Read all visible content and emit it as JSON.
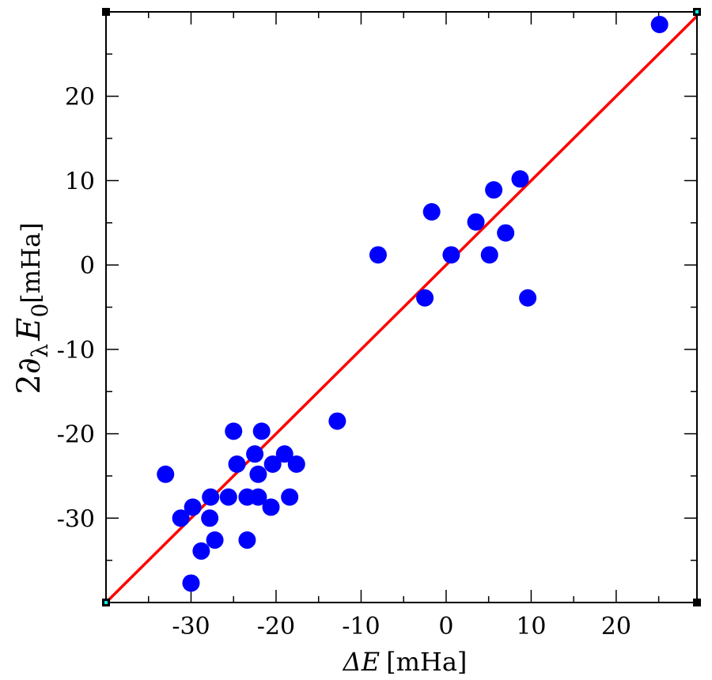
{
  "chart_data": {
    "type": "scatter",
    "title": "",
    "xlabel": {
      "prefix": "ΔE",
      "unit": "[mHa]"
    },
    "ylabel": {
      "prefix": "2∂",
      "sub": "λ",
      "var": "E",
      "sub2": "0",
      "unit": "[mHa]"
    },
    "xlim": [
      -40,
      29.5
    ],
    "ylim": [
      -40,
      30
    ],
    "xticks": [
      -30,
      -20,
      -10,
      0,
      10,
      20
    ],
    "yticks": [
      -30,
      -20,
      -10,
      0,
      10,
      20
    ],
    "minor_step": 5,
    "grid": false,
    "legend": "none",
    "colors": {
      "points": "#0000ff",
      "fit_line": "#ff0000",
      "axes": "#000000",
      "corner_marker": "#00ffff"
    },
    "fit_line": {
      "x": [
        -40,
        29.5
      ],
      "y": [
        -40,
        29.5
      ]
    },
    "points": [
      {
        "x": 25.1,
        "y": 28.5
      },
      {
        "x": 8.7,
        "y": 10.2
      },
      {
        "x": 5.6,
        "y": 8.9
      },
      {
        "x": 3.5,
        "y": 5.1
      },
      {
        "x": 7.0,
        "y": 3.8
      },
      {
        "x": -1.7,
        "y": 6.3
      },
      {
        "x": 0.6,
        "y": 1.2
      },
      {
        "x": 5.1,
        "y": 1.2
      },
      {
        "x": -8.0,
        "y": 1.2
      },
      {
        "x": -2.5,
        "y": -3.9
      },
      {
        "x": 9.6,
        "y": -3.9
      },
      {
        "x": -12.8,
        "y": -18.5
      },
      {
        "x": -25.0,
        "y": -19.7
      },
      {
        "x": -21.7,
        "y": -19.7
      },
      {
        "x": -22.5,
        "y": -22.4
      },
      {
        "x": -19.0,
        "y": -22.4
      },
      {
        "x": -24.6,
        "y": -23.6
      },
      {
        "x": -20.4,
        "y": -23.6
      },
      {
        "x": -17.6,
        "y": -23.6
      },
      {
        "x": -33.0,
        "y": -24.8
      },
      {
        "x": -22.1,
        "y": -24.8
      },
      {
        "x": -27.7,
        "y": -27.5
      },
      {
        "x": -25.6,
        "y": -27.5
      },
      {
        "x": -23.4,
        "y": -27.5
      },
      {
        "x": -22.1,
        "y": -27.5
      },
      {
        "x": -18.4,
        "y": -27.5
      },
      {
        "x": -29.8,
        "y": -28.7
      },
      {
        "x": -20.6,
        "y": -28.7
      },
      {
        "x": -31.2,
        "y": -30.0
      },
      {
        "x": -27.8,
        "y": -30.0
      },
      {
        "x": -27.2,
        "y": -32.6
      },
      {
        "x": -23.4,
        "y": -32.6
      },
      {
        "x": -28.8,
        "y": -33.9
      },
      {
        "x": -30.0,
        "y": -37.7
      }
    ]
  }
}
